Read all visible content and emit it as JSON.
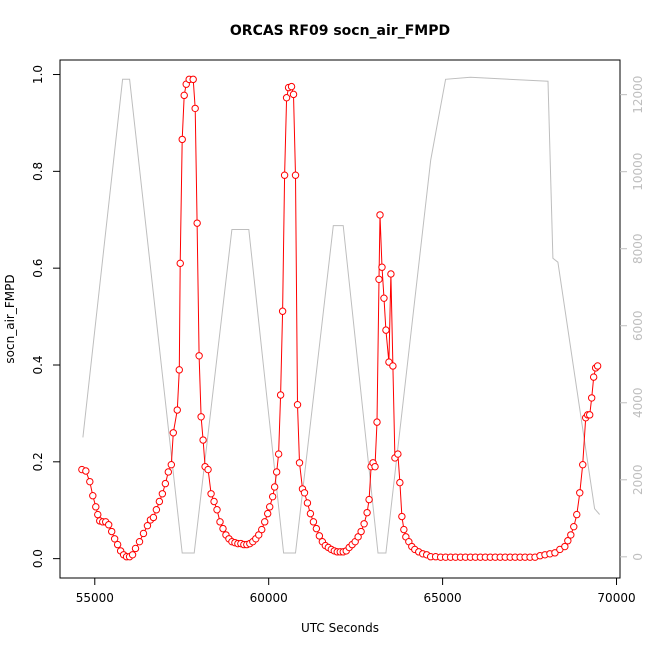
{
  "chart_data": {
    "type": "line",
    "title": "ORCAS RF09 socn_air_FMPD",
    "x_label": "UTC Seconds",
    "y_label": "socn_air_FMPD",
    "xlim": [
      54000,
      70100
    ],
    "ylim": [
      -0.04,
      1.03
    ],
    "y2lim": [
      -550,
      12900
    ],
    "xticks": [
      55000,
      60000,
      65000,
      70000
    ],
    "yticks": [
      {
        "value": 0,
        "label": "0.0"
      },
      0.2,
      0.4,
      0.6,
      0.8,
      {
        "value": 1,
        "label": "1.0"
      }
    ],
    "y2ticks": [
      0,
      2000,
      4000,
      6000,
      8000,
      10000,
      12000
    ],
    "y2_color": "#bebebe",
    "series": [
      {
        "color": "#bebebe",
        "axis": "y2",
        "marker": "none",
        "x": [
          54657,
          55800,
          56000,
          57514,
          57857,
          58943,
          59429,
          60429,
          60771,
          61857,
          62143,
          63143,
          63371,
          64657,
          65086,
          65800,
          68029,
          68171,
          68314,
          69371,
          69514
        ],
        "values": [
          3100,
          12400,
          12400,
          100,
          100,
          8500,
          8500,
          100,
          100,
          8600,
          8600,
          100,
          100,
          10300,
          12400,
          12450,
          12350,
          7750,
          7650,
          1250,
          1100
        ]
      },
      {
        "color": "#ff0000",
        "axis": "y",
        "marker": "circle",
        "x": [
          54629,
          54743,
          54857,
          54943,
          55029,
          55086,
          55143,
          55229,
          55314,
          55400,
          55486,
          55571,
          55657,
          55743,
          55829,
          55914,
          56000,
          56086,
          56171,
          56286,
          56400,
          56514,
          56600,
          56686,
          56771,
          56857,
          56943,
          57029,
          57114,
          57200,
          57257,
          57371,
          57429,
          57457,
          57514,
          57571,
          57629,
          57714,
          57829,
          57886,
          57943,
          58000,
          58057,
          58114,
          58171,
          58257,
          58343,
          58429,
          58514,
          58600,
          58686,
          58771,
          58857,
          58943,
          59029,
          59114,
          59200,
          59286,
          59371,
          59457,
          59543,
          59629,
          59714,
          59800,
          59886,
          59971,
          60029,
          60114,
          60171,
          60229,
          60286,
          60343,
          60400,
          60457,
          60514,
          60571,
          60657,
          60714,
          60771,
          60829,
          60886,
          60971,
          61029,
          61114,
          61200,
          61286,
          61371,
          61457,
          61543,
          61629,
          61714,
          61800,
          61886,
          61971,
          62057,
          62143,
          62229,
          62314,
          62400,
          62486,
          62571,
          62657,
          62743,
          62829,
          62886,
          62943,
          63000,
          63057,
          63114,
          63171,
          63200,
          63257,
          63314,
          63371,
          63457,
          63514,
          63571,
          63629,
          63714,
          63771,
          63829,
          63886,
          63943,
          64029,
          64114,
          64200,
          64314,
          64429,
          64543,
          64657,
          64800,
          64943,
          65086,
          65229,
          65371,
          65514,
          65657,
          65800,
          65943,
          66086,
          66229,
          66371,
          66514,
          66657,
          66800,
          66943,
          67086,
          67229,
          67371,
          67514,
          67657,
          67800,
          67943,
          68086,
          68229,
          68371,
          68514,
          68600,
          68686,
          68771,
          68857,
          68943,
          69029,
          69114,
          69171,
          69229,
          69286,
          69343,
          69400,
          69457
        ],
        "values": [
          0.184,
          0.181,
          0.159,
          0.13,
          0.107,
          0.091,
          0.078,
          0.076,
          0.076,
          0.07,
          0.056,
          0.041,
          0.029,
          0.016,
          0.008,
          0.004,
          0.004,
          0.008,
          0.021,
          0.035,
          0.052,
          0.068,
          0.08,
          0.085,
          0.101,
          0.118,
          0.134,
          0.155,
          0.179,
          0.194,
          0.26,
          0.307,
          0.39,
          0.61,
          0.866,
          0.957,
          0.98,
          0.99,
          0.99,
          0.93,
          0.693,
          0.419,
          0.293,
          0.245,
          0.19,
          0.184,
          0.134,
          0.118,
          0.101,
          0.076,
          0.062,
          0.049,
          0.041,
          0.035,
          0.033,
          0.031,
          0.031,
          0.029,
          0.029,
          0.031,
          0.035,
          0.041,
          0.049,
          0.06,
          0.076,
          0.093,
          0.107,
          0.128,
          0.148,
          0.179,
          0.216,
          0.338,
          0.511,
          0.792,
          0.952,
          0.973,
          0.975,
          0.959,
          0.792,
          0.318,
          0.198,
          0.144,
          0.136,
          0.115,
          0.093,
          0.076,
          0.062,
          0.047,
          0.035,
          0.027,
          0.023,
          0.019,
          0.016,
          0.014,
          0.014,
          0.014,
          0.016,
          0.023,
          0.029,
          0.035,
          0.045,
          0.056,
          0.072,
          0.095,
          0.122,
          0.19,
          0.198,
          0.19,
          0.282,
          0.577,
          0.71,
          0.602,
          0.538,
          0.472,
          0.406,
          0.588,
          0.398,
          0.208,
          0.216,
          0.157,
          0.087,
          0.06,
          0.045,
          0.035,
          0.025,
          0.019,
          0.014,
          0.01,
          0.008,
          0.004,
          0.004,
          0.003,
          0.003,
          0.003,
          0.003,
          0.003,
          0.003,
          0.003,
          0.003,
          0.003,
          0.003,
          0.003,
          0.003,
          0.003,
          0.003,
          0.003,
          0.003,
          0.003,
          0.003,
          0.003,
          0.003,
          0.006,
          0.008,
          0.01,
          0.012,
          0.019,
          0.025,
          0.037,
          0.049,
          0.066,
          0.091,
          0.136,
          0.194,
          0.291,
          0.297,
          0.297,
          0.332,
          0.375,
          0.394,
          0.398
        ]
      }
    ]
  }
}
